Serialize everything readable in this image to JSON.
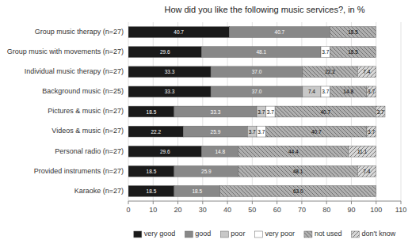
{
  "chart_data": {
    "type": "bar",
    "orientation": "horizontal",
    "stacked": true,
    "title": "How did you like the following music services?, in %",
    "categories": [
      "Group music therapy (n=27)",
      "Group music with movements (n=27)",
      "Individual music therapy (n=27)",
      "Background music (n=25)",
      "Pictures & music (n=27)",
      "Videos & music (n=27)",
      "Personal radio (n=27)",
      "Provided instruments (n=27)",
      "Karaoke (n=27)"
    ],
    "series": [
      {
        "name": "very good",
        "color": "#1a1a1a",
        "values": [
          40.7,
          29.6,
          33.3,
          33.3,
          18.5,
          22.2,
          29.6,
          18.5,
          18.5
        ],
        "value_labels": [
          "40.7",
          "29.6",
          "33.3",
          "33.3",
          "18.5",
          "22.2",
          "29.6",
          "18.5",
          "18.5"
        ]
      },
      {
        "name": "good",
        "color": "#888888",
        "values": [
          40.7,
          48.1,
          37.0,
          37.0,
          33.3,
          25.9,
          14.8,
          25.9,
          18.5
        ],
        "value_labels": [
          "40.7",
          "48.1",
          "37.0",
          "37.0",
          "33.3",
          "25.9",
          "14.8",
          "25.9",
          "18.5"
        ]
      },
      {
        "name": "poor",
        "color": "#c8c8c8",
        "values": [
          0.0,
          0.0,
          0.0,
          7.4,
          3.7,
          3.7,
          0.0,
          0.0,
          0.0
        ],
        "value_labels": [
          null,
          null,
          null,
          "7.4",
          "3.7",
          "3.7",
          null,
          null,
          null
        ]
      },
      {
        "name": "very poor",
        "color": "#ffffff",
        "values": [
          0.0,
          3.7,
          0.0,
          3.7,
          3.7,
          3.7,
          0.0,
          0.0,
          0.0
        ],
        "value_labels": [
          null,
          "3.7",
          null,
          "3.7",
          "3.7",
          "3.7",
          null,
          null,
          null
        ]
      },
      {
        "name": "not used",
        "color": "#b0b0b0",
        "values": [
          18.5,
          18.5,
          22.2,
          14.8,
          40.7,
          40.7,
          44.4,
          48.1,
          63.0
        ],
        "value_labels": [
          "18.5",
          "18.5",
          "22.2",
          "14.8",
          "40.7",
          "40.7",
          "44.4",
          "48.1",
          "63.0"
        ]
      },
      {
        "name": "don't know",
        "color": "#d8d8d8",
        "values": [
          0.0,
          0.0,
          7.4,
          3.7,
          3.7,
          3.7,
          11.1,
          7.4,
          0.0
        ],
        "value_labels": [
          null,
          null,
          "7.4",
          "3.7",
          "3.7",
          "3.7",
          "11.1",
          "7.4",
          null
        ]
      }
    ],
    "xlim": [
      0,
      110
    ],
    "xticks": [
      0,
      10,
      20,
      30,
      40,
      50,
      60,
      70,
      80,
      90,
      100,
      110
    ],
    "grid": true,
    "legend": "bottom",
    "data_labels": true
  }
}
